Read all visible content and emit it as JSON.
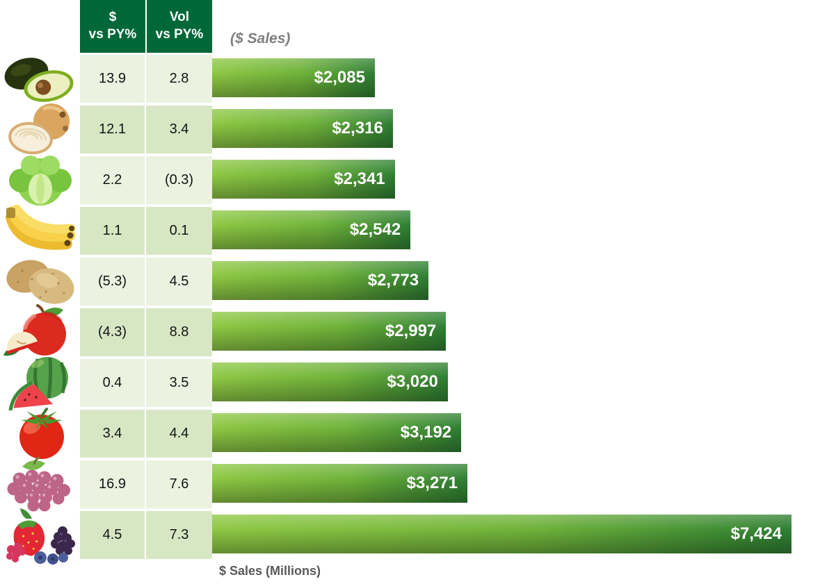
{
  "chart_data": {
    "type": "bar",
    "orientation": "horizontal",
    "title": "($ Sales)",
    "xlabel": "$ Sales (Millions)",
    "value_axis_min": 0,
    "value_axis_max": 7424,
    "grid": false,
    "legend": "none",
    "categories": [
      "avocado",
      "onion",
      "lettuce",
      "banana",
      "potato",
      "apple",
      "watermelon",
      "tomato",
      "grapes",
      "berries"
    ],
    "series": [
      {
        "name": "$ Sales (Millions)",
        "values": [
          2085,
          2316,
          2341,
          2542,
          2773,
          2997,
          3020,
          3192,
          3271,
          7424
        ]
      },
      {
        "name": "$ vs PY%",
        "values": [
          13.9,
          12.1,
          2.2,
          1.1,
          -5.3,
          -4.3,
          0.4,
          3.4,
          16.9,
          4.5
        ]
      },
      {
        "name": "Vol vs PY%",
        "values": [
          2.8,
          3.4,
          -0.3,
          0.1,
          4.5,
          8.8,
          3.5,
          4.4,
          7.6,
          7.3
        ]
      }
    ]
  },
  "table": {
    "headers": {
      "col1": "$\nvs PY%",
      "col2": "Vol\nvs PY%"
    },
    "caption": "($ Sales)",
    "rows": [
      {
        "icon": "avocado-icon",
        "dollar_vs_py": "13.9",
        "vol_vs_py": "2.8",
        "sales_label": "$2,085",
        "sales_value": 2085
      },
      {
        "icon": "onion-icon",
        "dollar_vs_py": "12.1",
        "vol_vs_py": "3.4",
        "sales_label": "$2,316",
        "sales_value": 2316
      },
      {
        "icon": "lettuce-icon",
        "dollar_vs_py": "2.2",
        "vol_vs_py": "(0.3)",
        "sales_label": "$2,341",
        "sales_value": 2341
      },
      {
        "icon": "banana-icon",
        "dollar_vs_py": "1.1",
        "vol_vs_py": "0.1",
        "sales_label": "$2,542",
        "sales_value": 2542
      },
      {
        "icon": "potato-icon",
        "dollar_vs_py": "(5.3)",
        "vol_vs_py": "4.5",
        "sales_label": "$2,773",
        "sales_value": 2773
      },
      {
        "icon": "apple-icon",
        "dollar_vs_py": "(4.3)",
        "vol_vs_py": "8.8",
        "sales_label": "$2,997",
        "sales_value": 2997
      },
      {
        "icon": "watermelon-icon",
        "dollar_vs_py": "0.4",
        "vol_vs_py": "3.5",
        "sales_label": "$3,020",
        "sales_value": 3020
      },
      {
        "icon": "tomato-icon",
        "dollar_vs_py": "3.4",
        "vol_vs_py": "4.4",
        "sales_label": "$3,192",
        "sales_value": 3192
      },
      {
        "icon": "grapes-icon",
        "dollar_vs_py": "16.9",
        "vol_vs_py": "7.6",
        "sales_label": "$3,271",
        "sales_value": 3271
      },
      {
        "icon": "berries-icon",
        "dollar_vs_py": "4.5",
        "vol_vs_py": "7.3",
        "sales_label": "$7,424",
        "sales_value": 7424
      }
    ]
  },
  "footer": {
    "axis_label": "$ Sales (Millions)"
  },
  "colors": {
    "header_bg": "#006838",
    "header_text": "#ffffff",
    "row_shade_light": "#ebf2e0",
    "row_shade_dark": "#d7e7c4",
    "bar_gradient_light": "#8ec844",
    "bar_gradient_dark": "#1c5e2d",
    "bar_label_text": "#ffffff",
    "caption_text": "#7f7f7f",
    "axis_label_text": "#58595b"
  }
}
